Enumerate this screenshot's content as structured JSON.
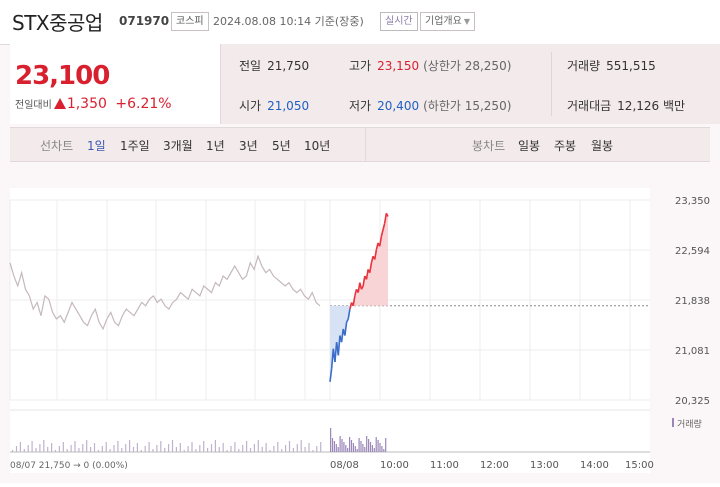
{
  "header": {
    "name": "STX중공업",
    "code": "071970",
    "market": "코스피",
    "datetime": "2024.08.08 10:14 기준(장중)",
    "live_label": "실시간",
    "company_label": "기업개요"
  },
  "price": {
    "current": "23,100",
    "change_label": "전일대비",
    "change_value": "1,350",
    "change_pct": "+6.21%"
  },
  "stats": {
    "prev_close": {
      "label": "전일",
      "value": "21,750"
    },
    "open": {
      "label": "시가",
      "value": "21,050"
    },
    "high": {
      "label": "고가",
      "value": "23,150",
      "sub": "(상한가 28,250)"
    },
    "low": {
      "label": "저가",
      "value": "20,400",
      "sub": "(하한가 15,250)"
    },
    "volume": {
      "label": "거래량",
      "value": "551,515"
    },
    "amount": {
      "label": "거래대금",
      "value": "12,126 백만"
    }
  },
  "tabs": {
    "line_label": "선차트",
    "line_items": [
      "1일",
      "1주일",
      "3개월",
      "1년",
      "3년",
      "5년",
      "10년"
    ],
    "candle_label": "봉차트",
    "candle_items": [
      "일봉",
      "주봉",
      "월봉"
    ]
  },
  "chart_data": {
    "type": "line",
    "yticks": [
      "23,350",
      "22,594",
      "21,838",
      "21,081",
      "20,325"
    ],
    "ylim": [
      20325,
      23350
    ],
    "reference_price": 21750,
    "xticks": [
      "08/08",
      "10:00",
      "11:00",
      "12:00",
      "13:00",
      "14:00",
      "15:00"
    ],
    "footer_text": "08/07  21,750 → 0 (0.00%)",
    "volume_label": "거래량",
    "colors": {
      "up": "#e8323c",
      "down": "#3a6cc8",
      "prev": "#c5b8bb",
      "volume": "#9a86b8"
    },
    "prev_day_series": [
      22400,
      22200,
      22050,
      22250,
      22000,
      21900,
      21700,
      21800,
      21600,
      21900,
      21850,
      21650,
      21550,
      21600,
      21500,
      21650,
      21800,
      21700,
      21600,
      21500,
      21450,
      21600,
      21700,
      21500,
      21400,
      21550,
      21650,
      21500,
      21450,
      21600,
      21700,
      21650,
      21600,
      21700,
      21800,
      21750,
      21850,
      21900,
      21800,
      21850,
      21750,
      21700,
      21800,
      21850,
      21950,
      21900,
      21850,
      22000,
      21950,
      21900,
      22050,
      22000,
      21950,
      22100,
      22050,
      22200,
      22150,
      22250,
      22350,
      22250,
      22150,
      22200,
      22400,
      22300,
      22500,
      22350,
      22250,
      22300,
      22200,
      22150,
      22100,
      22050,
      22100,
      22000,
      21950,
      22000,
      21900,
      21850,
      21950,
      21800,
      21750
    ],
    "today_series": [
      20600,
      20800,
      21100,
      20900,
      21200,
      21000,
      21300,
      21200,
      21400,
      21300,
      21500,
      21550,
      21700,
      21800,
      21750,
      21900,
      22000,
      21950,
      22100,
      22000,
      22050,
      22200,
      22150,
      22300,
      22250,
      22400,
      22500,
      22450,
      22600,
      22700,
      22650,
      22800,
      22900,
      23000,
      23150,
      23100
    ]
  }
}
